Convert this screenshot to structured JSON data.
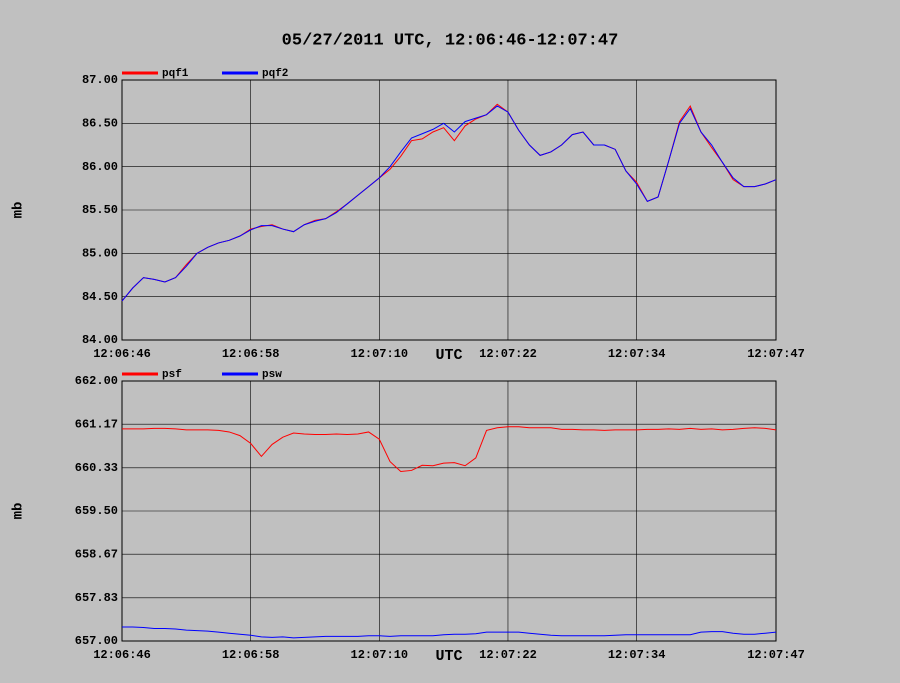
{
  "title": "05/27/2011  UTC, 12:06:46-12:07:47",
  "chart_data": [
    {
      "type": "line",
      "xlabel": "UTC",
      "ylabel": "mb",
      "grid": true,
      "xlim": [
        "12:06:46",
        "12:07:47"
      ],
      "xticks": [
        "12:06:46",
        "12:06:58",
        "12:07:10",
        "12:07:22",
        "12:07:34",
        "12:07:47"
      ],
      "ylim": [
        84,
        87
      ],
      "yticks": [
        {
          "value": 84,
          "label": "84.00"
        },
        {
          "value": 84.5,
          "label": "84.50"
        },
        {
          "value": 85,
          "label": "85.00"
        },
        {
          "value": 85.5,
          "label": "85.50"
        },
        {
          "value": 86,
          "label": "86.00"
        },
        {
          "value": 86.5,
          "label": "86.50"
        },
        {
          "value": 87,
          "label": "87.00"
        }
      ],
      "x": [
        "12:06:46",
        "12:06:47",
        "12:06:48",
        "12:06:49",
        "12:06:50",
        "12:06:51",
        "12:06:52",
        "12:06:53",
        "12:06:54",
        "12:06:55",
        "12:06:56",
        "12:06:57",
        "12:06:58",
        "12:06:59",
        "12:07:00",
        "12:07:01",
        "12:07:02",
        "12:07:03",
        "12:07:04",
        "12:07:05",
        "12:07:06",
        "12:07:07",
        "12:07:08",
        "12:07:09",
        "12:07:10",
        "12:07:11",
        "12:07:12",
        "12:07:13",
        "12:07:14",
        "12:07:15",
        "12:07:16",
        "12:07:17",
        "12:07:18",
        "12:07:19",
        "12:07:20",
        "12:07:21",
        "12:07:22",
        "12:07:23",
        "12:07:24",
        "12:07:25",
        "12:07:26",
        "12:07:27",
        "12:07:28",
        "12:07:29",
        "12:07:30",
        "12:07:31",
        "12:07:32",
        "12:07:33",
        "12:07:34",
        "12:07:35",
        "12:07:36",
        "12:07:37",
        "12:07:38",
        "12:07:39",
        "12:07:40",
        "12:07:41",
        "12:07:42",
        "12:07:43",
        "12:07:44",
        "12:07:45",
        "12:07:46",
        "12:07:47"
      ],
      "series": [
        {
          "name": "pqf1",
          "color": "#ff0000",
          "values": [
            84.45,
            84.6,
            84.72,
            84.7,
            84.67,
            84.72,
            84.87,
            85.0,
            85.07,
            85.12,
            85.15,
            85.2,
            85.28,
            85.31,
            85.33,
            85.28,
            85.25,
            85.33,
            85.38,
            85.4,
            85.48,
            85.57,
            85.67,
            85.77,
            85.87,
            85.97,
            86.12,
            86.3,
            86.32,
            86.4,
            86.45,
            86.3,
            86.47,
            86.55,
            86.6,
            86.72,
            86.63,
            86.42,
            86.25,
            86.13,
            86.17,
            86.25,
            86.37,
            86.4,
            86.25,
            86.25,
            86.2,
            85.95,
            85.82,
            85.6,
            85.65,
            86.07,
            86.52,
            86.7,
            86.4,
            86.22,
            86.05,
            85.85,
            85.77,
            85.77,
            85.8,
            85.85
          ]
        },
        {
          "name": "pqf2",
          "color": "#0000ff",
          "values": [
            84.45,
            84.6,
            84.72,
            84.7,
            84.67,
            84.72,
            84.85,
            85.0,
            85.07,
            85.12,
            85.15,
            85.2,
            85.27,
            85.32,
            85.32,
            85.28,
            85.25,
            85.33,
            85.37,
            85.4,
            85.47,
            85.57,
            85.67,
            85.77,
            85.87,
            86.0,
            86.17,
            86.33,
            86.38,
            86.43,
            86.5,
            86.4,
            86.52,
            86.56,
            86.6,
            86.7,
            86.63,
            86.42,
            86.25,
            86.13,
            86.17,
            86.25,
            86.37,
            86.4,
            86.25,
            86.25,
            86.2,
            85.95,
            85.8,
            85.6,
            85.65,
            86.07,
            86.5,
            86.67,
            86.4,
            86.25,
            86.05,
            85.87,
            85.77,
            85.77,
            85.8,
            85.85
          ]
        }
      ]
    },
    {
      "type": "line",
      "xlabel": "UTC",
      "ylabel": "mb",
      "grid": true,
      "xlim": [
        "12:06:46",
        "12:07:47"
      ],
      "xticks": [
        "12:06:46",
        "12:06:58",
        "12:07:10",
        "12:07:22",
        "12:07:34",
        "12:07:47"
      ],
      "ylim": [
        657,
        662
      ],
      "yticks": [
        {
          "value": 657,
          "label": "657.00"
        },
        {
          "value": 657.83,
          "label": "657.83"
        },
        {
          "value": 658.67,
          "label": "658.67"
        },
        {
          "value": 659.5,
          "label": "659.50"
        },
        {
          "value": 660.33,
          "label": "660.33"
        },
        {
          "value": 661.17,
          "label": "661.17"
        },
        {
          "value": 662,
          "label": "662.00"
        }
      ],
      "x": [
        "12:06:46",
        "12:06:47",
        "12:06:48",
        "12:06:49",
        "12:06:50",
        "12:06:51",
        "12:06:52",
        "12:06:53",
        "12:06:54",
        "12:06:55",
        "12:06:56",
        "12:06:57",
        "12:06:58",
        "12:06:59",
        "12:07:00",
        "12:07:01",
        "12:07:02",
        "12:07:03",
        "12:07:04",
        "12:07:05",
        "12:07:06",
        "12:07:07",
        "12:07:08",
        "12:07:09",
        "12:07:10",
        "12:07:11",
        "12:07:12",
        "12:07:13",
        "12:07:14",
        "12:07:15",
        "12:07:16",
        "12:07:17",
        "12:07:18",
        "12:07:19",
        "12:07:20",
        "12:07:21",
        "12:07:22",
        "12:07:23",
        "12:07:24",
        "12:07:25",
        "12:07:26",
        "12:07:27",
        "12:07:28",
        "12:07:29",
        "12:07:30",
        "12:07:31",
        "12:07:32",
        "12:07:33",
        "12:07:34",
        "12:07:35",
        "12:07:36",
        "12:07:37",
        "12:07:38",
        "12:07:39",
        "12:07:40",
        "12:07:41",
        "12:07:42",
        "12:07:43",
        "12:07:44",
        "12:07:45",
        "12:07:46",
        "12:07:47"
      ],
      "series": [
        {
          "name": "psf",
          "color": "#ff0000",
          "values": [
            661.08,
            661.08,
            661.08,
            661.09,
            661.09,
            661.08,
            661.06,
            661.06,
            661.06,
            661.05,
            661.02,
            660.95,
            660.8,
            660.55,
            660.78,
            660.92,
            661.0,
            660.98,
            660.97,
            660.97,
            660.98,
            660.97,
            660.98,
            661.02,
            660.88,
            660.45,
            660.26,
            660.28,
            660.38,
            660.37,
            660.42,
            660.43,
            660.37,
            660.52,
            661.05,
            661.1,
            661.12,
            661.12,
            661.1,
            661.1,
            661.1,
            661.07,
            661.07,
            661.06,
            661.06,
            661.05,
            661.06,
            661.06,
            661.06,
            661.07,
            661.07,
            661.08,
            661.07,
            661.09,
            661.07,
            661.08,
            661.06,
            661.07,
            661.09,
            661.1,
            661.09,
            661.06
          ]
        },
        {
          "name": "psw",
          "color": "#0000ff",
          "values": [
            657.27,
            657.27,
            657.26,
            657.24,
            657.24,
            657.23,
            657.21,
            657.2,
            657.19,
            657.17,
            657.15,
            657.13,
            657.11,
            657.08,
            657.07,
            657.08,
            657.06,
            657.07,
            657.08,
            657.09,
            657.09,
            657.09,
            657.09,
            657.1,
            657.1,
            657.09,
            657.1,
            657.1,
            657.1,
            657.1,
            657.12,
            657.13,
            657.13,
            657.14,
            657.17,
            657.17,
            657.17,
            657.17,
            657.15,
            657.13,
            657.11,
            657.1,
            657.1,
            657.1,
            657.1,
            657.1,
            657.11,
            657.12,
            657.12,
            657.12,
            657.12,
            657.12,
            657.12,
            657.12,
            657.17,
            657.18,
            657.18,
            657.15,
            657.13,
            657.13,
            657.15,
            657.17
          ]
        }
      ]
    }
  ]
}
